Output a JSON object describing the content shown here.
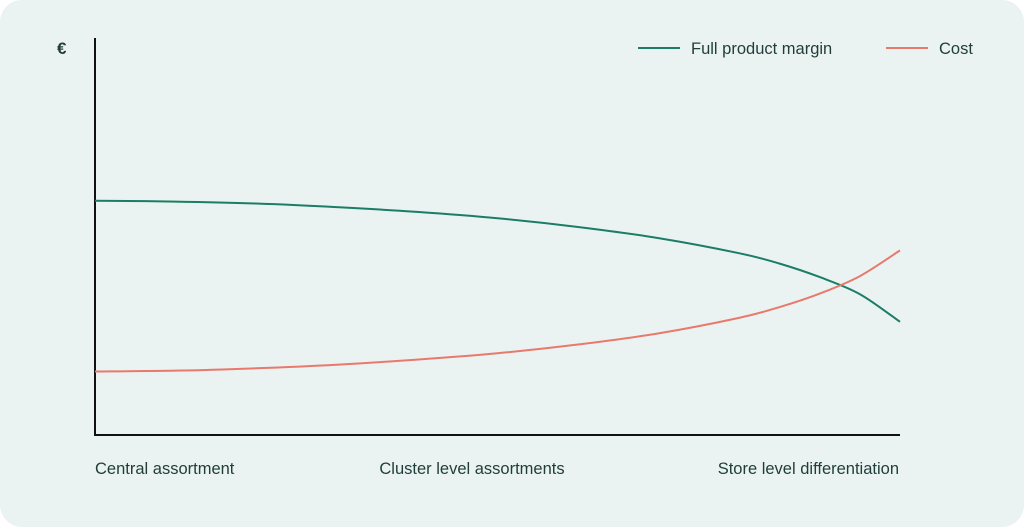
{
  "chart_data": {
    "type": "line",
    "ylabel": "€",
    "xlabel": "",
    "categories": [
      "Central assortment",
      "Cluster level assortments",
      "Store level differentiation"
    ],
    "x_range": [
      0,
      1
    ],
    "ylim": [
      0,
      1
    ],
    "grid": false,
    "legend_position": "top-right",
    "series": [
      {
        "name": "Full product margin",
        "color": "#1b7d67",
        "x": [
          0,
          0.1,
          0.2,
          0.3,
          0.4,
          0.5,
          0.6,
          0.7,
          0.8,
          0.85,
          0.9,
          0.95,
          1.0
        ],
        "values": [
          0.59,
          0.588,
          0.583,
          0.574,
          0.562,
          0.546,
          0.524,
          0.496,
          0.458,
          0.432,
          0.398,
          0.355,
          0.285
        ]
      },
      {
        "name": "Cost",
        "color": "#e8796d",
        "x": [
          0,
          0.1,
          0.2,
          0.3,
          0.4,
          0.5,
          0.6,
          0.7,
          0.8,
          0.85,
          0.9,
          0.95,
          1.0
        ],
        "values": [
          0.16,
          0.162,
          0.168,
          0.177,
          0.19,
          0.206,
          0.228,
          0.256,
          0.295,
          0.322,
          0.356,
          0.4,
          0.465
        ]
      }
    ]
  }
}
